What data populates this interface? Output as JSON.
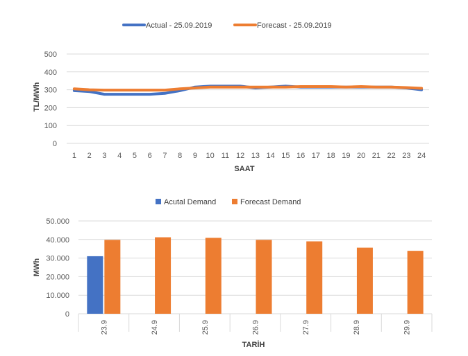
{
  "colors": {
    "actual": "#4472C4",
    "forecast": "#ED7D31",
    "grid": "#D9D9D9",
    "text": "#595959"
  },
  "chart_data": [
    {
      "type": "line",
      "legend_position": "top",
      "grid": true,
      "xlabel": "SAAT",
      "ylabel": "TL/MWh",
      "ylim": [
        0,
        500
      ],
      "yticks": [
        0,
        100,
        200,
        300,
        400,
        500
      ],
      "x": [
        "1",
        "2",
        "3",
        "4",
        "5",
        "6",
        "7",
        "8",
        "9",
        "10",
        "11",
        "12",
        "13",
        "14",
        "15",
        "16",
        "17",
        "18",
        "19",
        "20",
        "21",
        "22",
        "23",
        "24"
      ],
      "series": [
        {
          "name": "Actual - 25.09.2019",
          "color": "#4472C4",
          "values": [
            295,
            290,
            275,
            275,
            275,
            275,
            280,
            295,
            315,
            320,
            320,
            320,
            310,
            315,
            320,
            315,
            315,
            315,
            315,
            315,
            315,
            315,
            310,
            300
          ]
        },
        {
          "name": "Forecast - 25.09.2019",
          "color": "#ED7D31",
          "values": [
            305,
            300,
            298,
            298,
            298,
            298,
            298,
            305,
            310,
            315,
            315,
            315,
            315,
            315,
            315,
            318,
            318,
            318,
            315,
            318,
            315,
            315,
            312,
            308
          ]
        }
      ]
    },
    {
      "type": "bar",
      "legend_position": "top",
      "grid": true,
      "xlabel": "TARİH",
      "ylabel": "MWh",
      "ylim": [
        0,
        50000
      ],
      "yticks": [
        "0",
        "10.000",
        "20.000",
        "30.000",
        "40.000",
        "50.000"
      ],
      "ytick_values": [
        0,
        10000,
        20000,
        30000,
        40000,
        50000
      ],
      "categories": [
        "23.9",
        "24.9",
        "25.9",
        "26.9",
        "27.9",
        "28.9",
        "29.9"
      ],
      "series": [
        {
          "name": "Acutal Demand",
          "color": "#4472C4",
          "values": [
            31000,
            null,
            null,
            null,
            null,
            null,
            null
          ]
        },
        {
          "name": "Forecast Demand",
          "color": "#ED7D31",
          "values": [
            39800,
            41200,
            40900,
            39800,
            39000,
            35600,
            33900
          ]
        }
      ]
    }
  ]
}
